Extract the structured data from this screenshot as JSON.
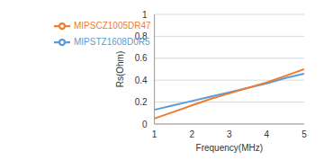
{
  "chart_data": {
    "type": "line",
    "x_label": "Frequency(MHz)",
    "y_label": "Rs(Ohm)",
    "x": [
      1,
      1.5,
      2,
      2.5,
      3,
      3.5,
      4,
      4.5,
      5
    ],
    "series": [
      {
        "name": "MIPSTZ1608D0R5",
        "color": "#5b9bd5",
        "values": [
          0.13,
          0.17,
          0.21,
          0.25,
          0.29,
          0.33,
          0.37,
          0.42,
          0.46
        ]
      },
      {
        "name": "MIPSCZ1005DR47",
        "color": "#ed7d31",
        "values": [
          0.05,
          0.11,
          0.17,
          0.23,
          0.28,
          0.33,
          0.38,
          0.44,
          0.5
        ]
      }
    ],
    "xlim": [
      1,
      5
    ],
    "xticks": [
      1,
      2,
      3,
      4,
      5
    ],
    "ylim": [
      0,
      1
    ],
    "yticks": [
      0,
      0.2,
      0.4,
      0.6,
      0.8,
      1
    ],
    "grid": true,
    "legend": "upper left"
  }
}
